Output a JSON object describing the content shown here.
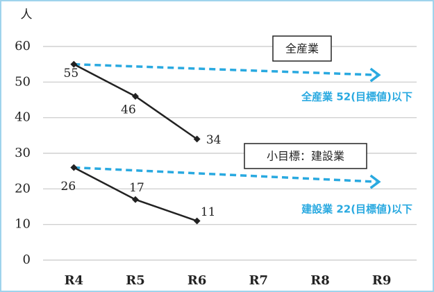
{
  "chart_data": {
    "type": "line",
    "y_unit": "人",
    "categories": [
      "R4",
      "R5",
      "R6",
      "R7",
      "R8",
      "R9"
    ],
    "ylim": [
      0,
      60
    ],
    "yticks": [
      0,
      10,
      20,
      30,
      40,
      50,
      60
    ],
    "grid": true,
    "target_color": "#29a9e0",
    "series": [
      {
        "name": "全産業",
        "color": "#222222",
        "values": [
          55,
          46,
          34,
          null,
          null,
          null
        ],
        "target": 52,
        "target_label": "全産業 52(目標値)以下"
      },
      {
        "name": "小目標：建設業",
        "color": "#222222",
        "values": [
          26,
          17,
          11,
          null,
          null,
          null
        ],
        "target": 22,
        "target_label": "建設業 22(目標値)以下"
      }
    ]
  }
}
